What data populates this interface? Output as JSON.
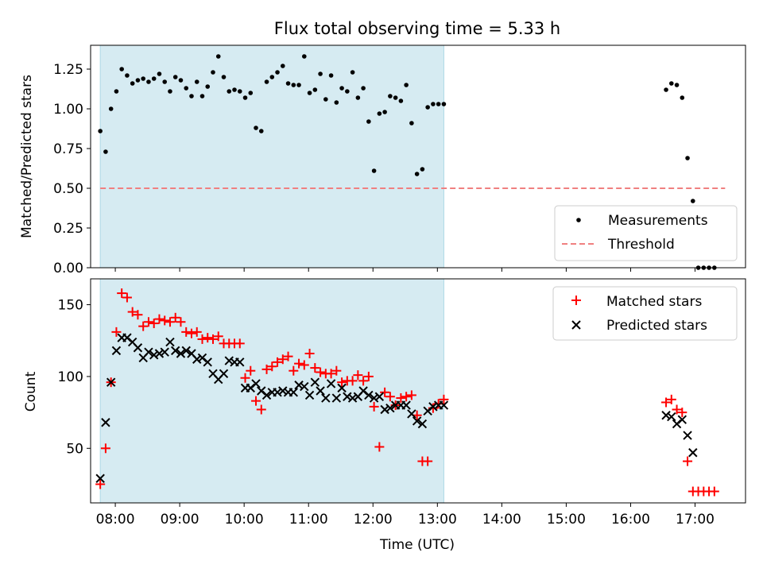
{
  "chart_data": [
    {
      "type": "scatter",
      "title": "Flux total observing time = 5.33 h",
      "ylabel": "Matched/Predicted stars",
      "xlabel": "",
      "xlim": [
        "07:37",
        "17:47"
      ],
      "ylim": [
        0,
        1.4
      ],
      "yticks": [
        "0.00",
        "0.25",
        "0.50",
        "0.75",
        "1.00",
        "1.25"
      ],
      "observing_window": [
        "07:46",
        "13:06"
      ],
      "observing_window_color": "#add8e6",
      "legend_position": "lower-right",
      "series": [
        {
          "name": "Measurements",
          "marker": "dot",
          "color": "#000000",
          "points": [
            [
              "07:46",
              0.86
            ],
            [
              "07:51",
              0.73
            ],
            [
              "07:56",
              1.0
            ],
            [
              "08:01",
              1.11
            ],
            [
              "08:06",
              1.25
            ],
            [
              "08:11",
              1.21
            ],
            [
              "08:16",
              1.16
            ],
            [
              "08:21",
              1.18
            ],
            [
              "08:26",
              1.19
            ],
            [
              "08:31",
              1.17
            ],
            [
              "08:36",
              1.19
            ],
            [
              "08:41",
              1.22
            ],
            [
              "08:46",
              1.17
            ],
            [
              "08:51",
              1.11
            ],
            [
              "08:56",
              1.2
            ],
            [
              "09:01",
              1.18
            ],
            [
              "09:06",
              1.13
            ],
            [
              "09:11",
              1.08
            ],
            [
              "09:16",
              1.17
            ],
            [
              "09:21",
              1.08
            ],
            [
              "09:26",
              1.14
            ],
            [
              "09:31",
              1.23
            ],
            [
              "09:36",
              1.33
            ],
            [
              "09:41",
              1.2
            ],
            [
              "09:46",
              1.11
            ],
            [
              "09:51",
              1.12
            ],
            [
              "09:56",
              1.11
            ],
            [
              "10:01",
              1.07
            ],
            [
              "10:06",
              1.1
            ],
            [
              "10:11",
              0.88
            ],
            [
              "10:16",
              0.86
            ],
            [
              "10:21",
              1.17
            ],
            [
              "10:26",
              1.2
            ],
            [
              "10:31",
              1.23
            ],
            [
              "10:36",
              1.27
            ],
            [
              "10:41",
              1.16
            ],
            [
              "10:46",
              1.15
            ],
            [
              "10:51",
              1.15
            ],
            [
              "10:56",
              1.33
            ],
            [
              "11:01",
              1.1
            ],
            [
              "11:06",
              1.12
            ],
            [
              "11:11",
              1.22
            ],
            [
              "11:16",
              1.06
            ],
            [
              "11:21",
              1.21
            ],
            [
              "11:26",
              1.04
            ],
            [
              "11:31",
              1.13
            ],
            [
              "11:36",
              1.11
            ],
            [
              "11:41",
              1.23
            ],
            [
              "11:46",
              1.07
            ],
            [
              "11:51",
              1.13
            ],
            [
              "11:56",
              0.92
            ],
            [
              "12:01",
              0.61
            ],
            [
              "12:06",
              0.97
            ],
            [
              "12:11",
              0.98
            ],
            [
              "12:16",
              1.08
            ],
            [
              "12:21",
              1.07
            ],
            [
              "12:26",
              1.05
            ],
            [
              "12:31",
              1.15
            ],
            [
              "12:36",
              0.91
            ],
            [
              "12:41",
              0.59
            ],
            [
              "12:46",
              0.62
            ],
            [
              "12:51",
              1.01
            ],
            [
              "12:56",
              1.03
            ],
            [
              "13:01",
              1.03
            ],
            [
              "13:06",
              1.03
            ],
            [
              "16:33",
              1.12
            ],
            [
              "16:38",
              1.16
            ],
            [
              "16:43",
              1.15
            ],
            [
              "16:48",
              1.07
            ],
            [
              "16:53",
              0.69
            ],
            [
              "16:58",
              0.42
            ],
            [
              "17:03",
              0.0
            ],
            [
              "17:08",
              0.0
            ],
            [
              "17:13",
              0.0
            ],
            [
              "17:18",
              0.0
            ]
          ]
        },
        {
          "name": "Threshold",
          "marker": "dashed-line",
          "color": "#f08080",
          "points": [
            [
              "07:46",
              0.5
            ],
            [
              "17:28",
              0.5
            ]
          ]
        }
      ]
    },
    {
      "type": "scatter",
      "title": "",
      "ylabel": "Count",
      "xlabel": "Time (UTC)",
      "xlim": [
        "07:37",
        "17:47"
      ],
      "ylim": [
        12,
        168
      ],
      "yticks": [
        "50",
        "100",
        "150"
      ],
      "xticks": [
        "08:00",
        "09:00",
        "10:00",
        "11:00",
        "12:00",
        "13:00",
        "14:00",
        "15:00",
        "16:00",
        "17:00"
      ],
      "observing_window": [
        "07:46",
        "13:06"
      ],
      "observing_window_color": "#add8e6",
      "legend_position": "top-right",
      "series": [
        {
          "name": "Matched stars",
          "marker": "plus",
          "color": "#ff0000",
          "points": [
            [
              "07:46",
              25
            ],
            [
              "07:51",
              50
            ],
            [
              "07:56",
              96
            ],
            [
              "08:01",
              131
            ],
            [
              "08:06",
              158
            ],
            [
              "08:11",
              155
            ],
            [
              "08:16",
              145
            ],
            [
              "08:21",
              143
            ],
            [
              "08:26",
              135
            ],
            [
              "08:31",
              138
            ],
            [
              "08:36",
              137
            ],
            [
              "08:41",
              140
            ],
            [
              "08:46",
              139
            ],
            [
              "08:51",
              138
            ],
            [
              "08:56",
              141
            ],
            [
              "09:01",
              138
            ],
            [
              "09:06",
              131
            ],
            [
              "09:11",
              130
            ],
            [
              "09:16",
              131
            ],
            [
              "09:21",
              126
            ],
            [
              "09:26",
              127
            ],
            [
              "09:31",
              126
            ],
            [
              "09:36",
              128
            ],
            [
              "09:41",
              123
            ],
            [
              "09:46",
              123
            ],
            [
              "09:51",
              123
            ],
            [
              "09:56",
              123
            ],
            [
              "10:01",
              99
            ],
            [
              "10:06",
              104
            ],
            [
              "10:11",
              83
            ],
            [
              "10:16",
              77
            ],
            [
              "10:21",
              105
            ],
            [
              "10:26",
              107
            ],
            [
              "10:31",
              110
            ],
            [
              "10:36",
              112
            ],
            [
              "10:41",
              114
            ],
            [
              "10:46",
              104
            ],
            [
              "10:51",
              109
            ],
            [
              "10:56",
              108
            ],
            [
              "11:01",
              116
            ],
            [
              "11:06",
              106
            ],
            [
              "11:11",
              103
            ],
            [
              "11:16",
              102
            ],
            [
              "11:21",
              102
            ],
            [
              "11:26",
              104
            ],
            [
              "11:31",
              96
            ],
            [
              "11:36",
              97
            ],
            [
              "11:41",
              97
            ],
            [
              "11:46",
              101
            ],
            [
              "11:51",
              97
            ],
            [
              "11:56",
              100
            ],
            [
              "12:01",
              79
            ],
            [
              "12:06",
              51
            ],
            [
              "12:11",
              89
            ],
            [
              "12:16",
              86
            ],
            [
              "12:21",
              80
            ],
            [
              "12:26",
              85
            ],
            [
              "12:31",
              86
            ],
            [
              "12:36",
              87
            ],
            [
              "12:41",
              73
            ],
            [
              "12:46",
              41
            ],
            [
              "12:51",
              41
            ],
            [
              "12:56",
              78
            ],
            [
              "13:01",
              81
            ],
            [
              "13:06",
              84
            ],
            [
              "16:33",
              82
            ],
            [
              "16:38",
              84
            ],
            [
              "16:43",
              77
            ],
            [
              "16:48",
              75
            ],
            [
              "16:53",
              41
            ],
            [
              "16:58",
              20
            ],
            [
              "17:03",
              20
            ],
            [
              "17:08",
              20
            ],
            [
              "17:13",
              20
            ],
            [
              "17:18",
              20
            ]
          ]
        },
        {
          "name": "Predicted stars",
          "marker": "x",
          "color": "#000000",
          "points": [
            [
              "07:46",
              29
            ],
            [
              "07:51",
              68
            ],
            [
              "07:56",
              96
            ],
            [
              "08:01",
              118
            ],
            [
              "08:06",
              127
            ],
            [
              "08:11",
              127
            ],
            [
              "08:16",
              124
            ],
            [
              "08:21",
              120
            ],
            [
              "08:26",
              113
            ],
            [
              "08:31",
              117
            ],
            [
              "08:36",
              115
            ],
            [
              "08:41",
              116
            ],
            [
              "08:46",
              117
            ],
            [
              "08:51",
              124
            ],
            [
              "08:56",
              118
            ],
            [
              "09:01",
              116
            ],
            [
              "09:06",
              118
            ],
            [
              "09:11",
              116
            ],
            [
              "09:16",
              112
            ],
            [
              "09:21",
              113
            ],
            [
              "09:26",
              110
            ],
            [
              "09:31",
              102
            ],
            [
              "09:36",
              98
            ],
            [
              "09:41",
              102
            ],
            [
              "09:46",
              111
            ],
            [
              "09:51",
              110
            ],
            [
              "09:56",
              110
            ],
            [
              "10:01",
              92
            ],
            [
              "10:06",
              92
            ],
            [
              "10:11",
              95
            ],
            [
              "10:16",
              90
            ],
            [
              "10:21",
              87
            ],
            [
              "10:26",
              89
            ],
            [
              "10:31",
              89
            ],
            [
              "10:36",
              90
            ],
            [
              "10:41",
              89
            ],
            [
              "10:46",
              89
            ],
            [
              "10:51",
              94
            ],
            [
              "10:56",
              93
            ],
            [
              "11:01",
              87
            ],
            [
              "11:06",
              96
            ],
            [
              "11:11",
              90
            ],
            [
              "11:16",
              85
            ],
            [
              "11:21",
              95
            ],
            [
              "11:26",
              85
            ],
            [
              "11:31",
              92
            ],
            [
              "11:36",
              86
            ],
            [
              "11:41",
              85
            ],
            [
              "11:46",
              86
            ],
            [
              "11:51",
              90
            ],
            [
              "11:56",
              87
            ],
            [
              "12:01",
              85
            ],
            [
              "12:06",
              86
            ],
            [
              "12:11",
              77
            ],
            [
              "12:16",
              78
            ],
            [
              "12:21",
              80
            ],
            [
              "12:26",
              80
            ],
            [
              "12:31",
              80
            ],
            [
              "12:36",
              74
            ],
            [
              "12:41",
              69
            ],
            [
              "12:46",
              67
            ],
            [
              "12:51",
              76
            ],
            [
              "12:56",
              79
            ],
            [
              "13:01",
              80
            ],
            [
              "13:06",
              80
            ],
            [
              "16:33",
              73
            ],
            [
              "16:38",
              72
            ],
            [
              "16:43",
              67
            ],
            [
              "16:48",
              70
            ],
            [
              "16:53",
              59
            ],
            [
              "16:58",
              47
            ]
          ]
        }
      ]
    }
  ]
}
